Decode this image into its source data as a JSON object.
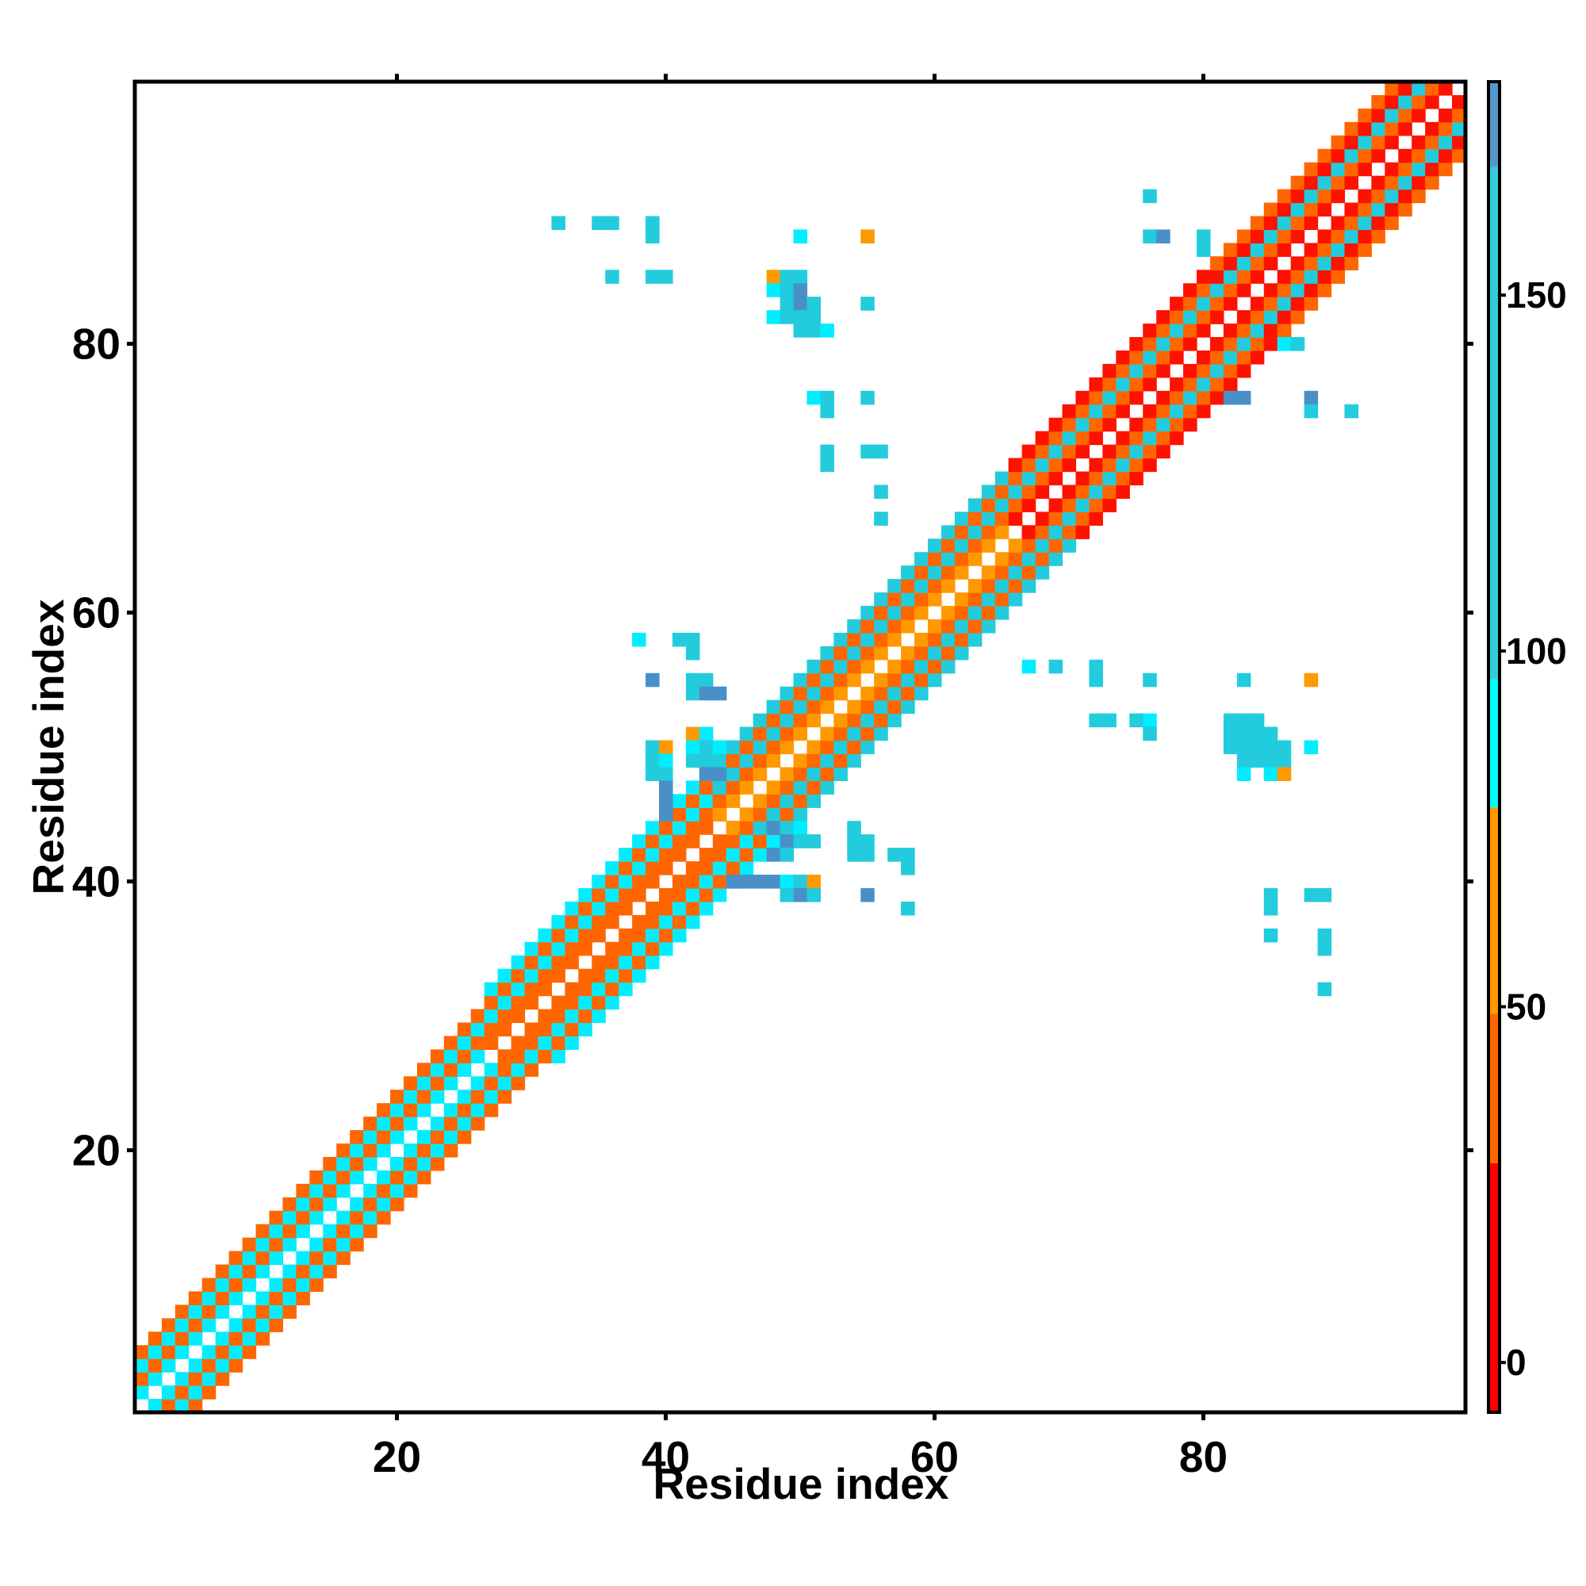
{
  "chart_data": {
    "type": "heatmap",
    "xlabel": "Residue index",
    "ylabel": "Residue index",
    "xlim": [
      1,
      99
    ],
    "ylim": [
      1,
      99
    ],
    "x_ticks": [
      20,
      40,
      60,
      80
    ],
    "y_ticks": [
      20,
      40,
      60,
      80
    ],
    "colorbar": {
      "range": [
        -7,
        180
      ],
      "ticks": [
        0,
        50,
        100,
        150
      ],
      "bins": [
        {
          "from": -7,
          "to": 28,
          "color": "#FF0000"
        },
        {
          "from": 28,
          "to": 49,
          "color": "#FF6600"
        },
        {
          "from": 49,
          "to": 78,
          "color": "#FF9900"
        },
        {
          "from": 78,
          "to": 96,
          "color": "#00FFFF"
        },
        {
          "from": 96,
          "to": 168,
          "color": "#33CCDD"
        },
        {
          "from": 168,
          "to": 180,
          "color": "#5599CC"
        }
      ],
      "white_top": true
    },
    "cell_colors": {
      "red": "#FF1100",
      "orange": "#FF6600",
      "amber": "#FF9900",
      "cyan": "#00EEFF",
      "teal": "#22CCDD",
      "blue": "#4A90C8"
    },
    "diagonal_segments": [
      {
        "start": 1,
        "end": 27,
        "pattern": [
          [
            1,
            "cyan"
          ],
          [
            2,
            "orange"
          ],
          [
            3,
            "cyan"
          ],
          [
            4,
            "orange"
          ]
        ]
      },
      {
        "start": 27,
        "end": 44,
        "pattern": [
          [
            1,
            "orange"
          ],
          [
            2,
            "orange"
          ],
          [
            3,
            "cyan"
          ],
          [
            4,
            "orange"
          ],
          [
            5,
            "cyan"
          ]
        ]
      },
      {
        "start": 44,
        "end": 66,
        "pattern": [
          [
            1,
            "amber"
          ],
          [
            2,
            "orange"
          ],
          [
            3,
            "teal"
          ],
          [
            4,
            "orange"
          ],
          [
            5,
            "teal"
          ]
        ]
      },
      {
        "start": 66,
        "end": 81,
        "pattern": [
          [
            1,
            "red"
          ],
          [
            2,
            "orange"
          ],
          [
            3,
            "teal"
          ],
          [
            4,
            "orange"
          ],
          [
            5,
            "red"
          ]
        ]
      },
      {
        "start": 81,
        "end": 99,
        "pattern": [
          [
            1,
            "red"
          ],
          [
            2,
            "orange"
          ],
          [
            3,
            "teal"
          ],
          [
            4,
            "red"
          ],
          [
            5,
            "orange"
          ]
        ]
      }
    ],
    "contacts": [
      {
        "x": 32,
        "y": 89,
        "c": "teal"
      },
      {
        "x": 35,
        "y": 89,
        "c": "teal"
      },
      {
        "x": 36,
        "y": 89,
        "c": "teal"
      },
      {
        "x": 39,
        "y": 89,
        "c": "teal"
      },
      {
        "x": 39,
        "y": 88,
        "c": "teal"
      },
      {
        "x": 36,
        "y": 85,
        "c": "teal"
      },
      {
        "x": 39,
        "y": 85,
        "c": "teal"
      },
      {
        "x": 40,
        "y": 85,
        "c": "teal"
      },
      {
        "x": 50,
        "y": 88,
        "c": "cyan"
      },
      {
        "x": 55,
        "y": 88,
        "c": "amber"
      },
      {
        "x": 48,
        "y": 85,
        "c": "amber"
      },
      {
        "x": 49,
        "y": 85,
        "c": "teal"
      },
      {
        "x": 50,
        "y": 85,
        "c": "teal"
      },
      {
        "x": 48,
        "y": 84,
        "c": "cyan"
      },
      {
        "x": 49,
        "y": 84,
        "c": "teal"
      },
      {
        "x": 50,
        "y": 84,
        "c": "blue"
      },
      {
        "x": 49,
        "y": 83,
        "c": "teal"
      },
      {
        "x": 50,
        "y": 83,
        "c": "blue"
      },
      {
        "x": 51,
        "y": 83,
        "c": "teal"
      },
      {
        "x": 48,
        "y": 82,
        "c": "cyan"
      },
      {
        "x": 49,
        "y": 82,
        "c": "teal"
      },
      {
        "x": 50,
        "y": 82,
        "c": "teal"
      },
      {
        "x": 51,
        "y": 82,
        "c": "teal"
      },
      {
        "x": 50,
        "y": 81,
        "c": "teal"
      },
      {
        "x": 51,
        "y": 81,
        "c": "teal"
      },
      {
        "x": 52,
        "y": 81,
        "c": "cyan"
      },
      {
        "x": 55,
        "y": 83,
        "c": "teal"
      },
      {
        "x": 51,
        "y": 76,
        "c": "cyan"
      },
      {
        "x": 52,
        "y": 76,
        "c": "teal"
      },
      {
        "x": 52,
        "y": 75,
        "c": "teal"
      },
      {
        "x": 55,
        "y": 76,
        "c": "teal"
      },
      {
        "x": 52,
        "y": 72,
        "c": "teal"
      },
      {
        "x": 52,
        "y": 71,
        "c": "teal"
      },
      {
        "x": 55,
        "y": 72,
        "c": "teal"
      },
      {
        "x": 56,
        "y": 72,
        "c": "teal"
      },
      {
        "x": 56,
        "y": 69,
        "c": "teal"
      },
      {
        "x": 56,
        "y": 67,
        "c": "teal"
      },
      {
        "x": 76,
        "y": 91,
        "c": "teal"
      },
      {
        "x": 76,
        "y": 88,
        "c": "teal"
      },
      {
        "x": 77,
        "y": 88,
        "c": "blue"
      },
      {
        "x": 80,
        "y": 88,
        "c": "teal"
      },
      {
        "x": 80,
        "y": 87,
        "c": "teal"
      },
      {
        "x": 86,
        "y": 80,
        "c": "cyan"
      },
      {
        "x": 87,
        "y": 80,
        "c": "teal"
      },
      {
        "x": 82,
        "y": 76,
        "c": "blue"
      },
      {
        "x": 83,
        "y": 76,
        "c": "blue"
      },
      {
        "x": 88,
        "y": 76,
        "c": "blue"
      },
      {
        "x": 88,
        "y": 75,
        "c": "teal"
      },
      {
        "x": 91,
        "y": 75,
        "c": "teal"
      },
      {
        "x": 38,
        "y": 58,
        "c": "cyan"
      },
      {
        "x": 41,
        "y": 58,
        "c": "teal"
      },
      {
        "x": 42,
        "y": 58,
        "c": "teal"
      },
      {
        "x": 42,
        "y": 57,
        "c": "teal"
      },
      {
        "x": 39,
        "y": 55,
        "c": "blue"
      },
      {
        "x": 42,
        "y": 55,
        "c": "teal"
      },
      {
        "x": 43,
        "y": 55,
        "c": "teal"
      },
      {
        "x": 42,
        "y": 54,
        "c": "teal"
      },
      {
        "x": 43,
        "y": 54,
        "c": "blue"
      },
      {
        "x": 44,
        "y": 54,
        "c": "blue"
      },
      {
        "x": 42,
        "y": 51,
        "c": "amber"
      },
      {
        "x": 43,
        "y": 51,
        "c": "cyan"
      },
      {
        "x": 39,
        "y": 50,
        "c": "teal"
      },
      {
        "x": 40,
        "y": 50,
        "c": "amber"
      },
      {
        "x": 42,
        "y": 50,
        "c": "cyan"
      },
      {
        "x": 43,
        "y": 50,
        "c": "teal"
      },
      {
        "x": 44,
        "y": 50,
        "c": "cyan"
      },
      {
        "x": 39,
        "y": 49,
        "c": "teal"
      },
      {
        "x": 40,
        "y": 49,
        "c": "cyan"
      },
      {
        "x": 42,
        "y": 49,
        "c": "teal"
      },
      {
        "x": 43,
        "y": 49,
        "c": "teal"
      },
      {
        "x": 39,
        "y": 48,
        "c": "teal"
      },
      {
        "x": 40,
        "y": 48,
        "c": "teal"
      },
      {
        "x": 43,
        "y": 48,
        "c": "blue"
      },
      {
        "x": 44,
        "y": 48,
        "c": "blue"
      },
      {
        "x": 40,
        "y": 47,
        "c": "blue"
      },
      {
        "x": 40,
        "y": 46,
        "c": "blue"
      },
      {
        "x": 40,
        "y": 45,
        "c": "blue"
      },
      {
        "x": 48,
        "y": 44,
        "c": "blue"
      },
      {
        "x": 49,
        "y": 44,
        "c": "teal"
      },
      {
        "x": 50,
        "y": 44,
        "c": "cyan"
      },
      {
        "x": 49,
        "y": 43,
        "c": "blue"
      },
      {
        "x": 50,
        "y": 43,
        "c": "teal"
      },
      {
        "x": 51,
        "y": 43,
        "c": "teal"
      },
      {
        "x": 48,
        "y": 42,
        "c": "blue"
      },
      {
        "x": 49,
        "y": 42,
        "c": "teal"
      },
      {
        "x": 54,
        "y": 44,
        "c": "teal"
      },
      {
        "x": 54,
        "y": 43,
        "c": "teal"
      },
      {
        "x": 55,
        "y": 43,
        "c": "teal"
      },
      {
        "x": 54,
        "y": 42,
        "c": "teal"
      },
      {
        "x": 55,
        "y": 42,
        "c": "teal"
      },
      {
        "x": 57,
        "y": 42,
        "c": "teal"
      },
      {
        "x": 58,
        "y": 42,
        "c": "teal"
      },
      {
        "x": 58,
        "y": 41,
        "c": "teal"
      },
      {
        "x": 45,
        "y": 40,
        "c": "blue"
      },
      {
        "x": 46,
        "y": 40,
        "c": "blue"
      },
      {
        "x": 47,
        "y": 40,
        "c": "blue"
      },
      {
        "x": 48,
        "y": 40,
        "c": "blue"
      },
      {
        "x": 49,
        "y": 40,
        "c": "cyan"
      },
      {
        "x": 50,
        "y": 40,
        "c": "teal"
      },
      {
        "x": 51,
        "y": 40,
        "c": "amber"
      },
      {
        "x": 49,
        "y": 39,
        "c": "teal"
      },
      {
        "x": 50,
        "y": 39,
        "c": "blue"
      },
      {
        "x": 51,
        "y": 39,
        "c": "teal"
      },
      {
        "x": 55,
        "y": 39,
        "c": "blue"
      },
      {
        "x": 58,
        "y": 38,
        "c": "teal"
      },
      {
        "x": 67,
        "y": 56,
        "c": "cyan"
      },
      {
        "x": 69,
        "y": 56,
        "c": "teal"
      },
      {
        "x": 72,
        "y": 56,
        "c": "teal"
      },
      {
        "x": 72,
        "y": 55,
        "c": "teal"
      },
      {
        "x": 76,
        "y": 55,
        "c": "teal"
      },
      {
        "x": 83,
        "y": 55,
        "c": "teal"
      },
      {
        "x": 88,
        "y": 55,
        "c": "amber"
      },
      {
        "x": 72,
        "y": 52,
        "c": "teal"
      },
      {
        "x": 73,
        "y": 52,
        "c": "teal"
      },
      {
        "x": 75,
        "y": 52,
        "c": "teal"
      },
      {
        "x": 76,
        "y": 52,
        "c": "cyan"
      },
      {
        "x": 76,
        "y": 51,
        "c": "teal"
      },
      {
        "x": 82,
        "y": 52,
        "c": "teal"
      },
      {
        "x": 83,
        "y": 52,
        "c": "teal"
      },
      {
        "x": 84,
        "y": 52,
        "c": "teal"
      },
      {
        "x": 82,
        "y": 51,
        "c": "teal"
      },
      {
        "x": 83,
        "y": 51,
        "c": "teal"
      },
      {
        "x": 84,
        "y": 51,
        "c": "teal"
      },
      {
        "x": 85,
        "y": 51,
        "c": "teal"
      },
      {
        "x": 82,
        "y": 50,
        "c": "teal"
      },
      {
        "x": 83,
        "y": 50,
        "c": "teal"
      },
      {
        "x": 84,
        "y": 50,
        "c": "teal"
      },
      {
        "x": 85,
        "y": 50,
        "c": "teal"
      },
      {
        "x": 86,
        "y": 50,
        "c": "teal"
      },
      {
        "x": 83,
        "y": 49,
        "c": "teal"
      },
      {
        "x": 84,
        "y": 49,
        "c": "teal"
      },
      {
        "x": 85,
        "y": 49,
        "c": "teal"
      },
      {
        "x": 86,
        "y": 49,
        "c": "teal"
      },
      {
        "x": 83,
        "y": 48,
        "c": "cyan"
      },
      {
        "x": 85,
        "y": 48,
        "c": "cyan"
      },
      {
        "x": 86,
        "y": 48,
        "c": "amber"
      },
      {
        "x": 88,
        "y": 50,
        "c": "cyan"
      },
      {
        "x": 85,
        "y": 39,
        "c": "teal"
      },
      {
        "x": 85,
        "y": 38,
        "c": "teal"
      },
      {
        "x": 88,
        "y": 39,
        "c": "teal"
      },
      {
        "x": 89,
        "y": 39,
        "c": "teal"
      },
      {
        "x": 85,
        "y": 36,
        "c": "teal"
      },
      {
        "x": 89,
        "y": 36,
        "c": "teal"
      },
      {
        "x": 89,
        "y": 35,
        "c": "teal"
      },
      {
        "x": 89,
        "y": 32,
        "c": "teal"
      }
    ]
  }
}
